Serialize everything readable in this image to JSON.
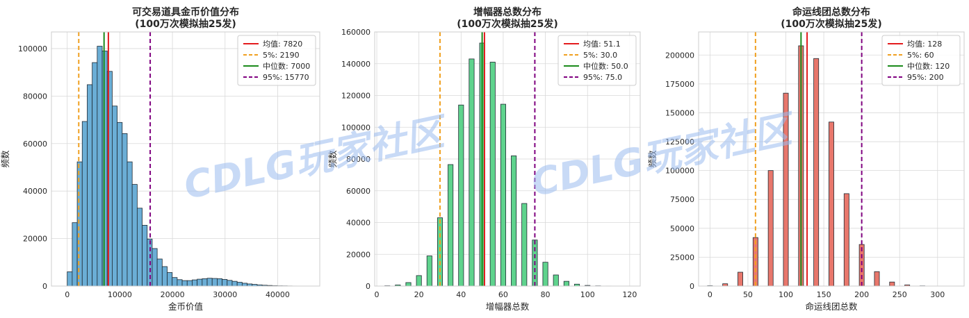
{
  "watermark": "CDLG玩家社区",
  "colors": {
    "mean": "#e31a1c",
    "p5": "#f0a020",
    "median": "#1a8a1a",
    "p95": "#800080",
    "grid": "#d9d9d9"
  },
  "chart_data": [
    {
      "type": "bar",
      "title_lines": [
        "可交易道具金币价值分布",
        "(100万次模拟抽25发)"
      ],
      "xlabel": "金币价值",
      "ylabel": "频数",
      "bar_color": "#6baed6",
      "xlim": [
        -3000,
        48000
      ],
      "ylim": [
        0,
        107000
      ],
      "xticks": [
        0,
        10000,
        20000,
        30000,
        40000
      ],
      "yticks": [
        0,
        20000,
        40000,
        60000,
        80000,
        100000
      ],
      "bin_start": 0,
      "bin_width": 950,
      "values": [
        6000,
        26700,
        52300,
        69300,
        84800,
        94100,
        101000,
        99000,
        90400,
        75800,
        68900,
        64200,
        52300,
        42800,
        32800,
        25600,
        19800,
        15800,
        11400,
        8200,
        5700,
        3600,
        2700,
        2300,
        2300,
        2600,
        2900,
        3100,
        3300,
        3200,
        3100,
        2800,
        2400,
        2000,
        1600,
        1200,
        900,
        700,
        500,
        350,
        250,
        150,
        100,
        80,
        50,
        30,
        20
      ],
      "lines": [
        {
          "name": "均值: 7820",
          "x": 7820,
          "style": "mean"
        },
        {
          "name": "5%: 2190",
          "x": 2190,
          "style": "p5"
        },
        {
          "name": "中位数: 7000",
          "x": 7000,
          "style": "median"
        },
        {
          "name": "95%: 15770",
          "x": 15770,
          "style": "p95"
        }
      ]
    },
    {
      "type": "bar",
      "title_lines": [
        "增幅器总数分布",
        "(100万次模拟抽25发)"
      ],
      "xlabel": "增幅器总数",
      "ylabel": "频数",
      "bar_color": "#5fd38d",
      "xlim": [
        -1,
        125
      ],
      "ylim": [
        0,
        160000
      ],
      "xticks": [
        0,
        20,
        40,
        60,
        80,
        100,
        120
      ],
      "yticks": [
        0,
        20000,
        40000,
        60000,
        80000,
        100000,
        120000,
        140000,
        160000
      ],
      "bar_width": 2.4,
      "points": [
        [
          5,
          200
        ],
        [
          10,
          700
        ],
        [
          15,
          2200
        ],
        [
          20,
          6600
        ],
        [
          25,
          19000
        ],
        [
          30,
          43000
        ],
        [
          35,
          76500
        ],
        [
          40,
          114000
        ],
        [
          45,
          143000
        ],
        [
          50,
          153000
        ],
        [
          55,
          141000
        ],
        [
          60,
          114500
        ],
        [
          65,
          82000
        ],
        [
          70,
          52000
        ],
        [
          75,
          29000
        ],
        [
          80,
          15000
        ],
        [
          85,
          7000
        ],
        [
          90,
          3000
        ],
        [
          95,
          1200
        ],
        [
          100,
          400
        ],
        [
          105,
          150
        ],
        [
          110,
          50
        ],
        [
          115,
          20
        ],
        [
          120,
          10
        ]
      ],
      "lines": [
        {
          "name": "均值: 51.1",
          "x": 51.1,
          "style": "mean"
        },
        {
          "name": "5%: 30.0",
          "x": 30.0,
          "style": "p5"
        },
        {
          "name": "中位数: 50.0",
          "x": 50.0,
          "style": "median"
        },
        {
          "name": "95%: 75.0",
          "x": 75.0,
          "style": "p95"
        }
      ]
    },
    {
      "type": "bar",
      "title_lines": [
        "命运线团总数分布",
        "(100万次模拟抽25发)"
      ],
      "xlabel": "命运线团总数",
      "ylabel": "频数",
      "bar_color": "#e8776c",
      "xlim": [
        -15,
        335
      ],
      "ylim": [
        0,
        220000
      ],
      "xticks": [
        0,
        50,
        100,
        150,
        200,
        250,
        300
      ],
      "yticks": [
        0,
        25000,
        50000,
        75000,
        100000,
        125000,
        150000,
        175000,
        200000
      ],
      "bar_width": 6.5,
      "points": [
        [
          0,
          300
        ],
        [
          20,
          2000
        ],
        [
          40,
          12000
        ],
        [
          60,
          42000
        ],
        [
          80,
          100000
        ],
        [
          100,
          167000
        ],
        [
          120,
          208000
        ],
        [
          140,
          197000
        ],
        [
          160,
          142000
        ],
        [
          180,
          80000
        ],
        [
          200,
          36000
        ],
        [
          220,
          12500
        ],
        [
          240,
          3500
        ],
        [
          260,
          1000
        ],
        [
          280,
          200
        ],
        [
          300,
          50
        ],
        [
          320,
          10
        ]
      ],
      "lines": [
        {
          "name": "均值: 128",
          "x": 128,
          "style": "mean"
        },
        {
          "name": "5%: 60",
          "x": 60,
          "style": "p5"
        },
        {
          "name": "中位数: 120",
          "x": 120,
          "style": "median"
        },
        {
          "name": "95%: 200",
          "x": 200,
          "style": "p95"
        }
      ]
    }
  ]
}
